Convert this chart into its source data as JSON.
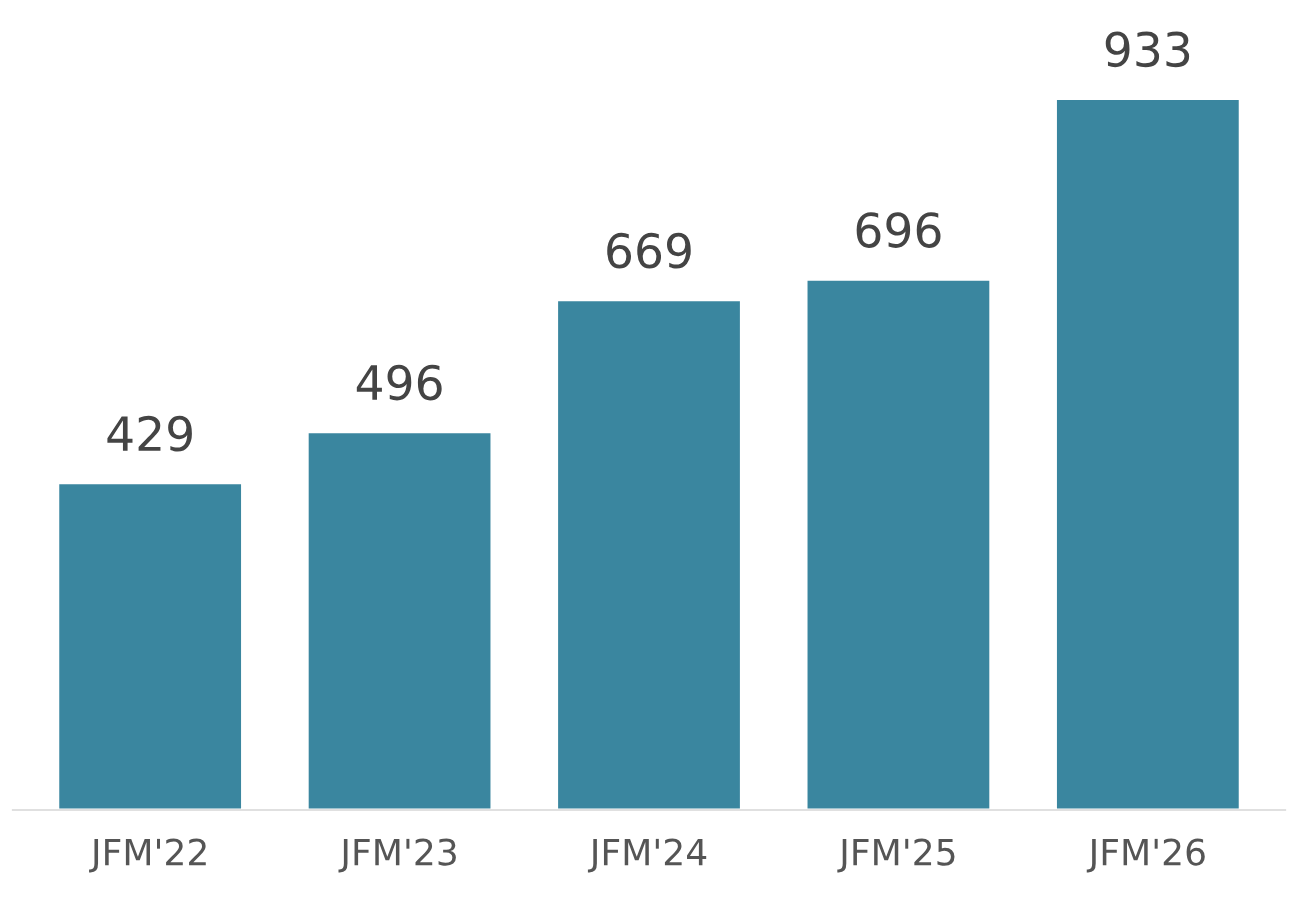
{
  "chart_data": {
    "type": "bar",
    "categories": [
      "JFM'22",
      "JFM'23",
      "JFM'24",
      "JFM'25",
      "JFM'26"
    ],
    "values": [
      429,
      496,
      669,
      696,
      933
    ],
    "color": "#3a869f",
    "data_labels": true,
    "grid": false,
    "legend": false
  }
}
